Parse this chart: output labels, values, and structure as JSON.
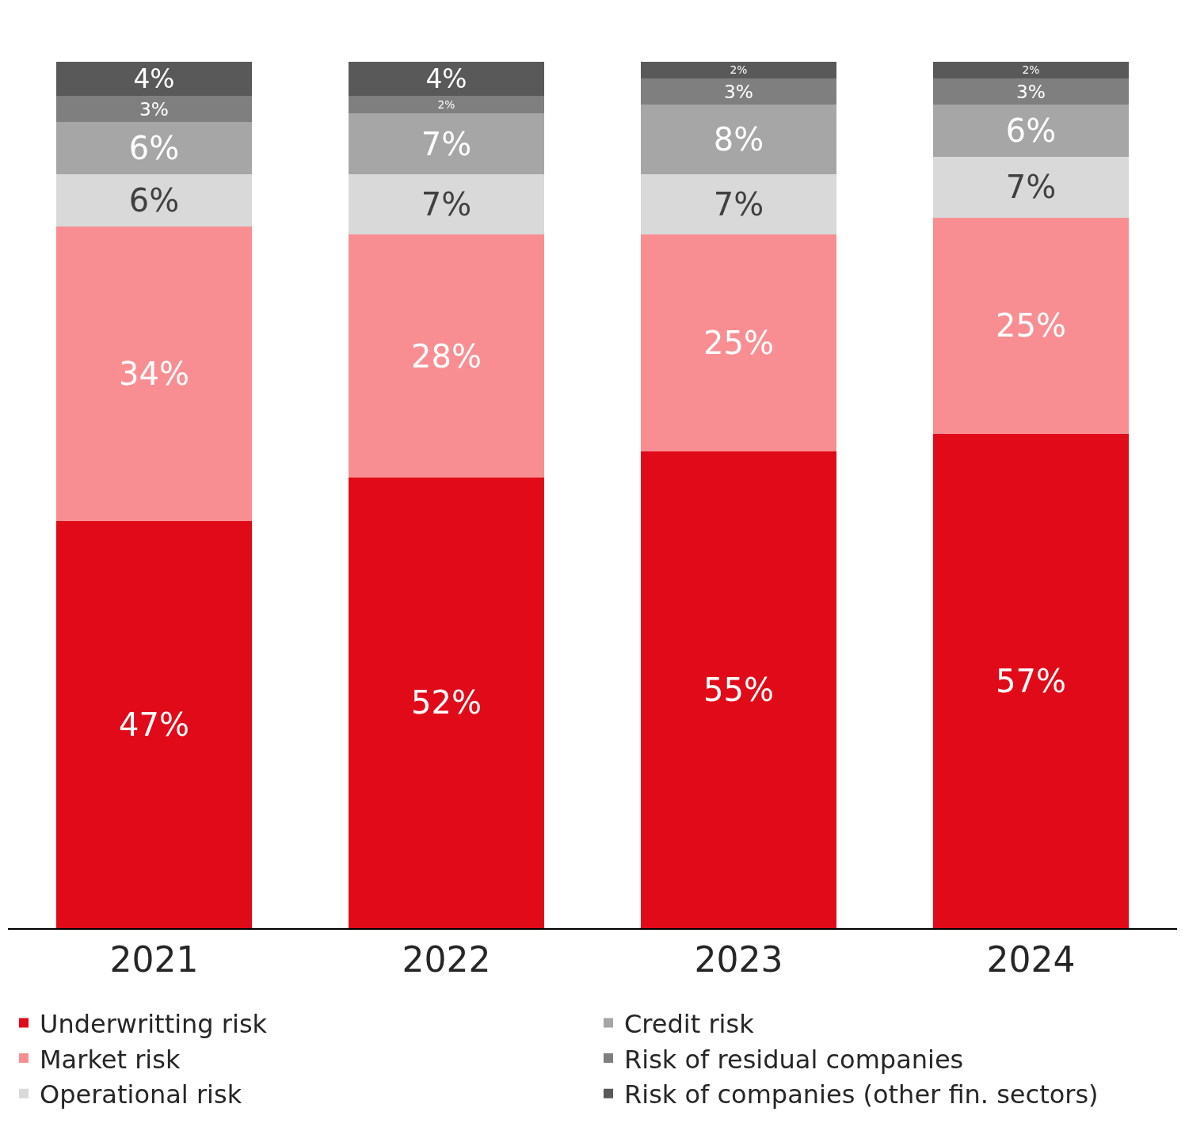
{
  "chart_data": {
    "type": "bar",
    "stacked": true,
    "categories": [
      "2021",
      "2022",
      "2023",
      "2024"
    ],
    "series": [
      {
        "name": "Underwritting risk",
        "color": "#e10a19",
        "values": [
          47,
          52,
          55,
          57
        ],
        "value_labels": [
          "47%",
          "52%",
          "55%",
          "57%"
        ]
      },
      {
        "name": "Market risk",
        "color": "#f98e92",
        "values": [
          34,
          28,
          25,
          25
        ],
        "value_labels": [
          "34%",
          "28%",
          "25%",
          "25%"
        ]
      },
      {
        "name": "Operational risk",
        "color": "#d9d9d9",
        "values": [
          6,
          7,
          7,
          7
        ],
        "value_labels": [
          "6%",
          "7%",
          "7%",
          "7%"
        ]
      },
      {
        "name": "Credit risk",
        "color": "#a6a6a6",
        "values": [
          6,
          7,
          8,
          6
        ],
        "value_labels": [
          "6%",
          "7%",
          "8%",
          "6%"
        ]
      },
      {
        "name": "Risk of residual companies",
        "color": "#7f7f7f",
        "values": [
          3,
          2,
          3,
          3
        ],
        "value_labels": [
          "3%",
          "2%",
          "3%",
          "3%"
        ]
      },
      {
        "name": "Risk of companies (other fin. sectors)",
        "color": "#595959",
        "values": [
          4,
          4,
          2,
          2
        ],
        "value_labels": [
          "4%",
          "4%",
          "2%",
          "2%"
        ]
      }
    ],
    "tick_labels": "x",
    "legend": "bottom"
  }
}
